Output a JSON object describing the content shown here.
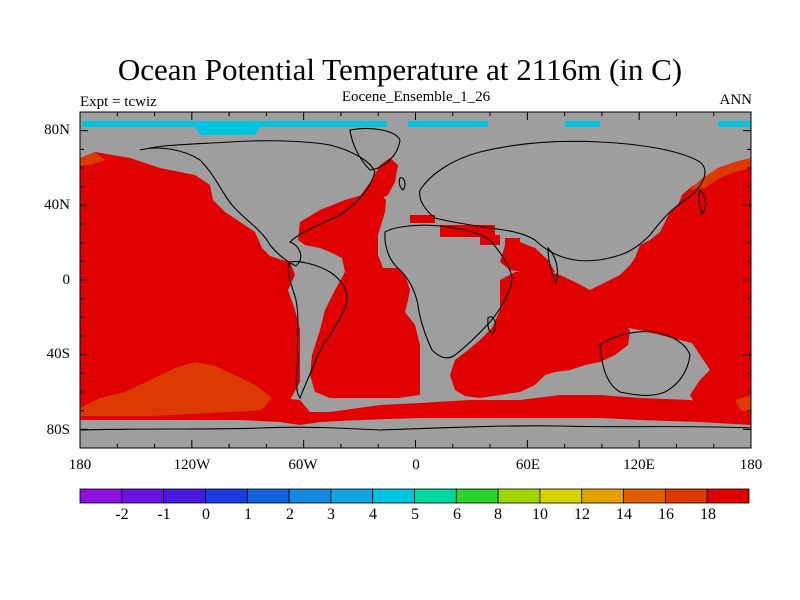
{
  "title": "Ocean Potential Temperature at 2116m (in C)",
  "left_string": "Expt = tcwiz",
  "center_string": "Eocene_Ensemble_1_26",
  "right_string": "ANN",
  "colors": {
    "land": "#9e9e9e",
    "warm_ocean": "#e00000",
    "orange_ocean": "#dc3a00",
    "sea_ice_cyan": "#00c4e0",
    "coast": "#000000"
  },
  "map": {
    "projection": "cylindrical-equidistant",
    "lon_range": [
      -180,
      180
    ],
    "lat_range": [
      -90,
      90
    ],
    "x_ticks": [
      "180",
      "120W",
      "60W",
      "0",
      "60E",
      "120E",
      "180"
    ],
    "y_ticks": [
      "80N",
      "40N",
      "0",
      "40S",
      "80S"
    ]
  },
  "colorbar": {
    "labels": [
      "-2",
      "-1",
      "0",
      "1",
      "2",
      "3",
      "4",
      "5",
      "6",
      "8",
      "10",
      "12",
      "14",
      "16",
      "18"
    ],
    "colors": [
      "#8c10e0",
      "#6a14e0",
      "#4a1ae0",
      "#1c3ce0",
      "#1464e0",
      "#1487e0",
      "#14a4e0",
      "#00c4e0",
      "#00d8a0",
      "#2ad42a",
      "#a0d400",
      "#d8d400",
      "#e0a000",
      "#e06000",
      "#dc3a00",
      "#e00000"
    ]
  }
}
